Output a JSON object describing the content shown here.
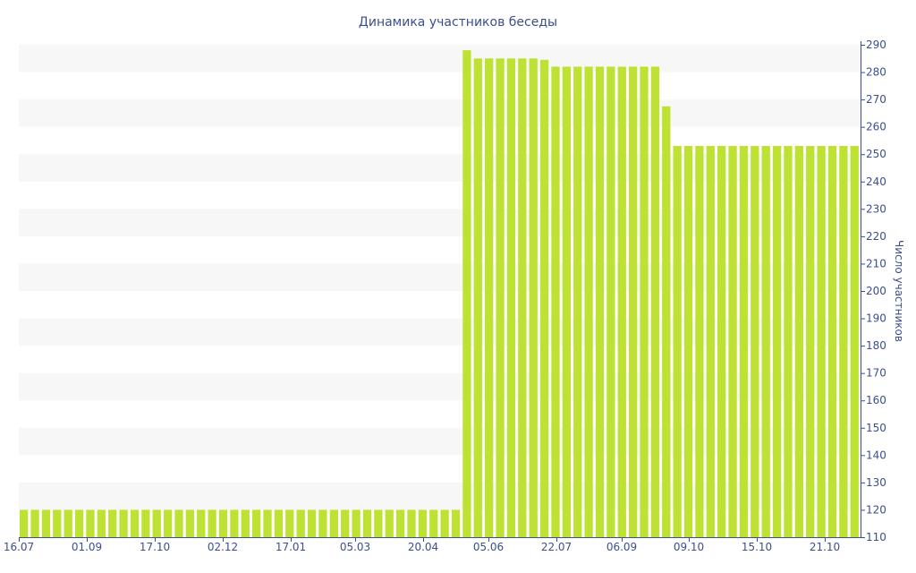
{
  "chart_data": {
    "type": "bar",
    "title": "Динамика участников беседы",
    "xlabel": "",
    "ylabel": "Число участников",
    "ylim": [
      110,
      290
    ],
    "yticks": [
      110,
      120,
      130,
      140,
      150,
      160,
      170,
      180,
      190,
      200,
      210,
      220,
      230,
      240,
      250,
      260,
      270,
      280,
      290
    ],
    "xtick_labels": [
      "16.07",
      "01.09",
      "17.10",
      "02.12",
      "17.01",
      "05.03",
      "20.04",
      "05.06",
      "22.07",
      "06.09",
      "09.10",
      "15.10",
      "21.10"
    ],
    "values": [
      120,
      120,
      120,
      120,
      120,
      120,
      120,
      120,
      120,
      120,
      120,
      120,
      120,
      120,
      120,
      120,
      120,
      120,
      120,
      120,
      120,
      120,
      120,
      120,
      120,
      120,
      120,
      120,
      120,
      120,
      120,
      120,
      120,
      120,
      120,
      120,
      120,
      120,
      120,
      120,
      288,
      285,
      285,
      285,
      285,
      285,
      285,
      284.5,
      282,
      282,
      282,
      282,
      282,
      282,
      282,
      282,
      282,
      282,
      267.5,
      253,
      253,
      253,
      253,
      253,
      253,
      253,
      253,
      253,
      253,
      253,
      253,
      253,
      253,
      253,
      253,
      253
    ],
    "colors": {
      "bar": "#bde233",
      "text": "#3b4f8c",
      "band": "#f7f7f7",
      "axis": "#3b4f8c"
    },
    "grid": "alternating horizontal bands",
    "y_axis_position": "right"
  }
}
